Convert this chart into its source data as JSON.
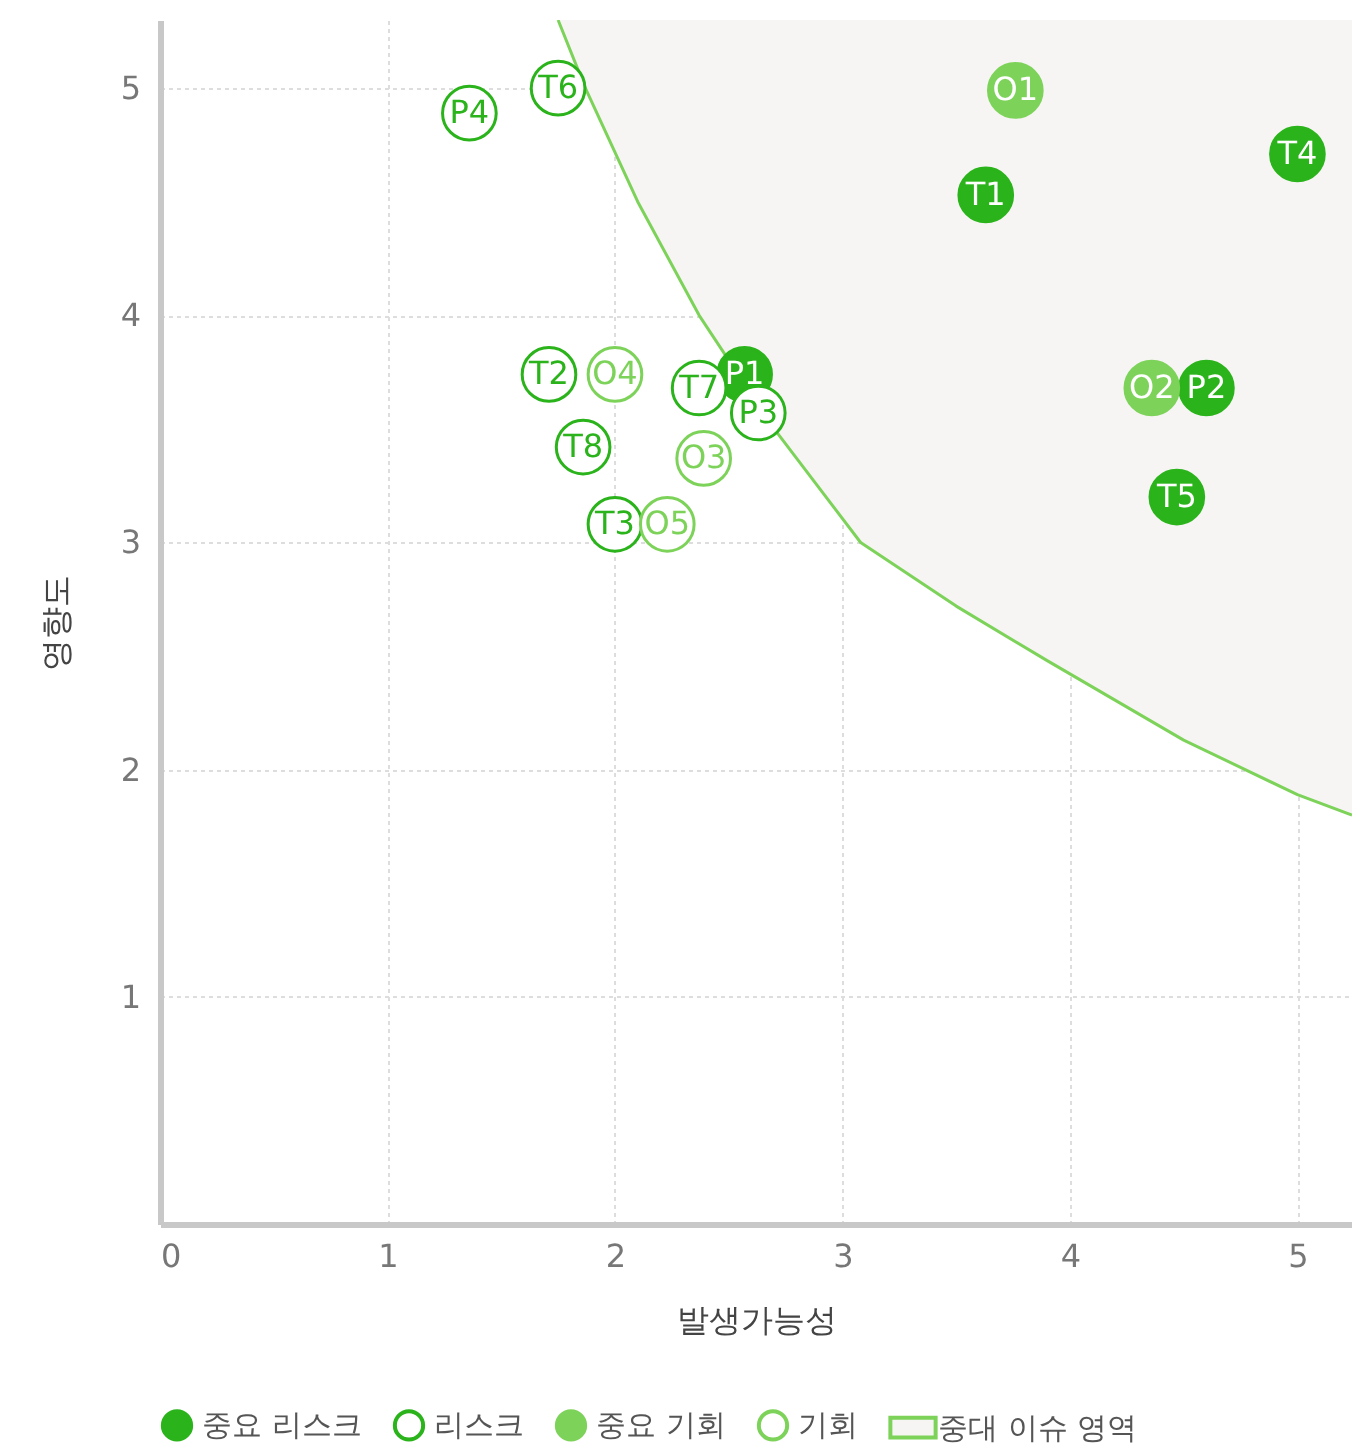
{
  "chart_data": {
    "type": "scatter",
    "xlabel": "발생가능성",
    "ylabel": "영향도",
    "xlim": [
      0,
      5.24
    ],
    "ylim": [
      0,
      5.3
    ],
    "xticks": [
      0,
      1,
      2,
      3,
      4,
      5
    ],
    "yticks": [
      1,
      2,
      3,
      4,
      5
    ],
    "grid": true,
    "legend": "bottom",
    "series": [
      {
        "name": "중요 리스크",
        "color": "#2ab31a",
        "marker": "circle",
        "x": [
          3.63,
          5.0,
          2.57,
          4.6,
          4.47
        ],
        "values": [
          4.53,
          4.71,
          3.74,
          3.68,
          3.2
        ],
        "value_labels": [
          "T1",
          "T4",
          "P1",
          "P2",
          "T5"
        ]
      },
      {
        "name": "리스크",
        "color": "#2ab31a",
        "marker": "circle-open",
        "x": [
          1.75,
          1.36,
          1.71,
          2.37,
          2.63,
          1.86,
          2.0
        ],
        "values": [
          5.0,
          4.89,
          3.74,
          3.68,
          3.57,
          3.42,
          3.08
        ],
        "value_labels": [
          "T6",
          "P4",
          "T2",
          "T7",
          "P3",
          "T8",
          "T3"
        ]
      },
      {
        "name": "중요 기회",
        "color": "#7dd35a",
        "marker": "circle",
        "x": [
          3.76,
          4.36
        ],
        "values": [
          4.99,
          3.68
        ],
        "value_labels": [
          "O1",
          "O2"
        ]
      },
      {
        "name": "기회",
        "color": "#7dd35a",
        "marker": "circle-open",
        "x": [
          2.0,
          2.39,
          2.23
        ],
        "values": [
          3.74,
          3.37,
          3.08
        ],
        "value_labels": [
          "O4",
          "O3",
          "O5"
        ]
      },
      {
        "name": "중대 이슈 영역",
        "type": "line",
        "color": "#7dd35a",
        "x": [
          1.75,
          1.87,
          2.1,
          2.37,
          2.7,
          3.08,
          3.5,
          3.9,
          4.5,
          5.0,
          5.24
        ],
        "values": [
          5.3,
          5.0,
          4.5,
          4.0,
          3.5,
          3.0,
          2.72,
          2.48,
          2.13,
          1.89,
          1.8
        ]
      }
    ]
  }
}
